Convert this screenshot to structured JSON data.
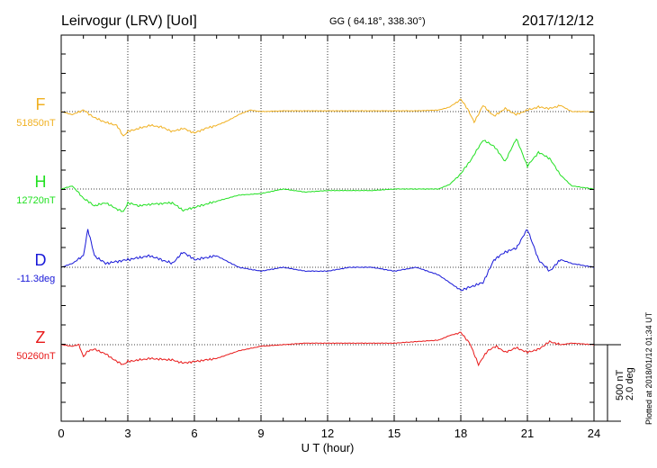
{
  "header": {
    "station": "Leirvogur (LRV)  [UoI]",
    "coords": "GG ( 64.18°, 338.30°)",
    "date": "2017/12/12"
  },
  "xaxis": {
    "label": "U T (hour)",
    "ticks": [
      "0",
      "3",
      "6",
      "9",
      "12",
      "15",
      "18",
      "21",
      "24"
    ],
    "range": [
      0,
      24
    ]
  },
  "channels": [
    {
      "name": "F",
      "baseline": "51850nT",
      "color": "#f0b020"
    },
    {
      "name": "H",
      "baseline": "12720nT",
      "color": "#22e022"
    },
    {
      "name": "D",
      "baseline": "-11.3deg",
      "color": "#1818d8"
    },
    {
      "name": "Z",
      "baseline": "50260nT",
      "color": "#e81818"
    }
  ],
  "scale": {
    "nT": "500 nT",
    "deg": "2.0 deg"
  },
  "plotted": "Plotted at 2018/01/12 01:34 UT",
  "chart_data": {
    "type": "line",
    "xlabel": "U T (hour)",
    "xlim": [
      0,
      24
    ],
    "grid": true,
    "scale_bar": "500 nT / 2.0 deg",
    "series": [
      {
        "name": "F",
        "unit": "nT",
        "x": [
          0,
          0.5,
          1,
          1.5,
          2,
          2.5,
          2.8,
          3,
          3.5,
          4,
          4.5,
          5,
          5.5,
          6,
          6.5,
          7,
          7.5,
          8,
          8.5,
          9,
          10,
          11,
          12,
          13,
          14,
          15,
          16,
          17,
          17.5,
          18,
          18.3,
          18.6,
          19,
          19.5,
          20,
          20.5,
          21,
          21.5,
          22,
          22.5,
          23,
          24
        ],
        "y": [
          0,
          -20,
          10,
          -40,
          -70,
          -90,
          -160,
          -130,
          -110,
          -90,
          -100,
          -130,
          -110,
          -140,
          -110,
          -90,
          -60,
          -20,
          10,
          0,
          5,
          5,
          5,
          5,
          5,
          5,
          5,
          10,
          30,
          80,
          20,
          -70,
          40,
          -30,
          20,
          -20,
          10,
          30,
          20,
          40,
          0,
          0
        ]
      },
      {
        "name": "H",
        "unit": "nT",
        "x": [
          0,
          0.5,
          1,
          1.5,
          2,
          2.5,
          2.8,
          3,
          3.5,
          4,
          5,
          5.5,
          6,
          7,
          8,
          9,
          10,
          11,
          12,
          13,
          14,
          15,
          16,
          17,
          17.5,
          18,
          18.5,
          19,
          19.5,
          20,
          20.5,
          21,
          21.5,
          22,
          22.5,
          23,
          24
        ],
        "y": [
          0,
          20,
          -60,
          -110,
          -90,
          -130,
          -150,
          -90,
          -110,
          -100,
          -90,
          -140,
          -120,
          -80,
          -40,
          -30,
          0,
          -20,
          -10,
          -10,
          -10,
          0,
          0,
          0,
          30,
          100,
          200,
          320,
          280,
          180,
          330,
          150,
          240,
          200,
          90,
          20,
          0
        ]
      },
      {
        "name": "D",
        "unit": "deg",
        "x": [
          0,
          0.5,
          1,
          1.2,
          1.5,
          2,
          3,
          4,
          5,
          5.5,
          6,
          7,
          8,
          9,
          10,
          11,
          12,
          13,
          14,
          15,
          16,
          17,
          18,
          18.5,
          19,
          19.5,
          20,
          20.5,
          21,
          21.5,
          22,
          22.5,
          23,
          24
        ],
        "y": [
          0,
          0.1,
          0.3,
          1.0,
          0.3,
          0.1,
          0.2,
          0.3,
          0.1,
          0.4,
          0.2,
          0.3,
          0,
          -0.1,
          0,
          -0.1,
          -0.1,
          0,
          0,
          -0.1,
          0,
          -0.2,
          -0.6,
          -0.5,
          -0.4,
          0.2,
          0.4,
          0.5,
          1.0,
          0.2,
          -0.1,
          0.2,
          0.1,
          0
        ]
      },
      {
        "name": "Z",
        "unit": "nT",
        "x": [
          0,
          0.5,
          0.8,
          1,
          1.2,
          1.5,
          2,
          2.5,
          2.8,
          3,
          3.5,
          4,
          5,
          5.5,
          6,
          7,
          8,
          9,
          10,
          11,
          12,
          13,
          14,
          15,
          16,
          17,
          17.5,
          18,
          18.4,
          18.8,
          19.2,
          19.6,
          20,
          20.5,
          21,
          21.5,
          22,
          22.5,
          23,
          24
        ],
        "y": [
          0,
          -10,
          0,
          -80,
          -40,
          -30,
          -60,
          -110,
          -130,
          -110,
          -100,
          -90,
          -100,
          -120,
          -110,
          -90,
          -40,
          -10,
          0,
          10,
          10,
          10,
          10,
          10,
          20,
          30,
          60,
          80,
          10,
          -130,
          -40,
          -10,
          -50,
          -20,
          -50,
          -30,
          20,
          0,
          10,
          0
        ]
      }
    ]
  }
}
